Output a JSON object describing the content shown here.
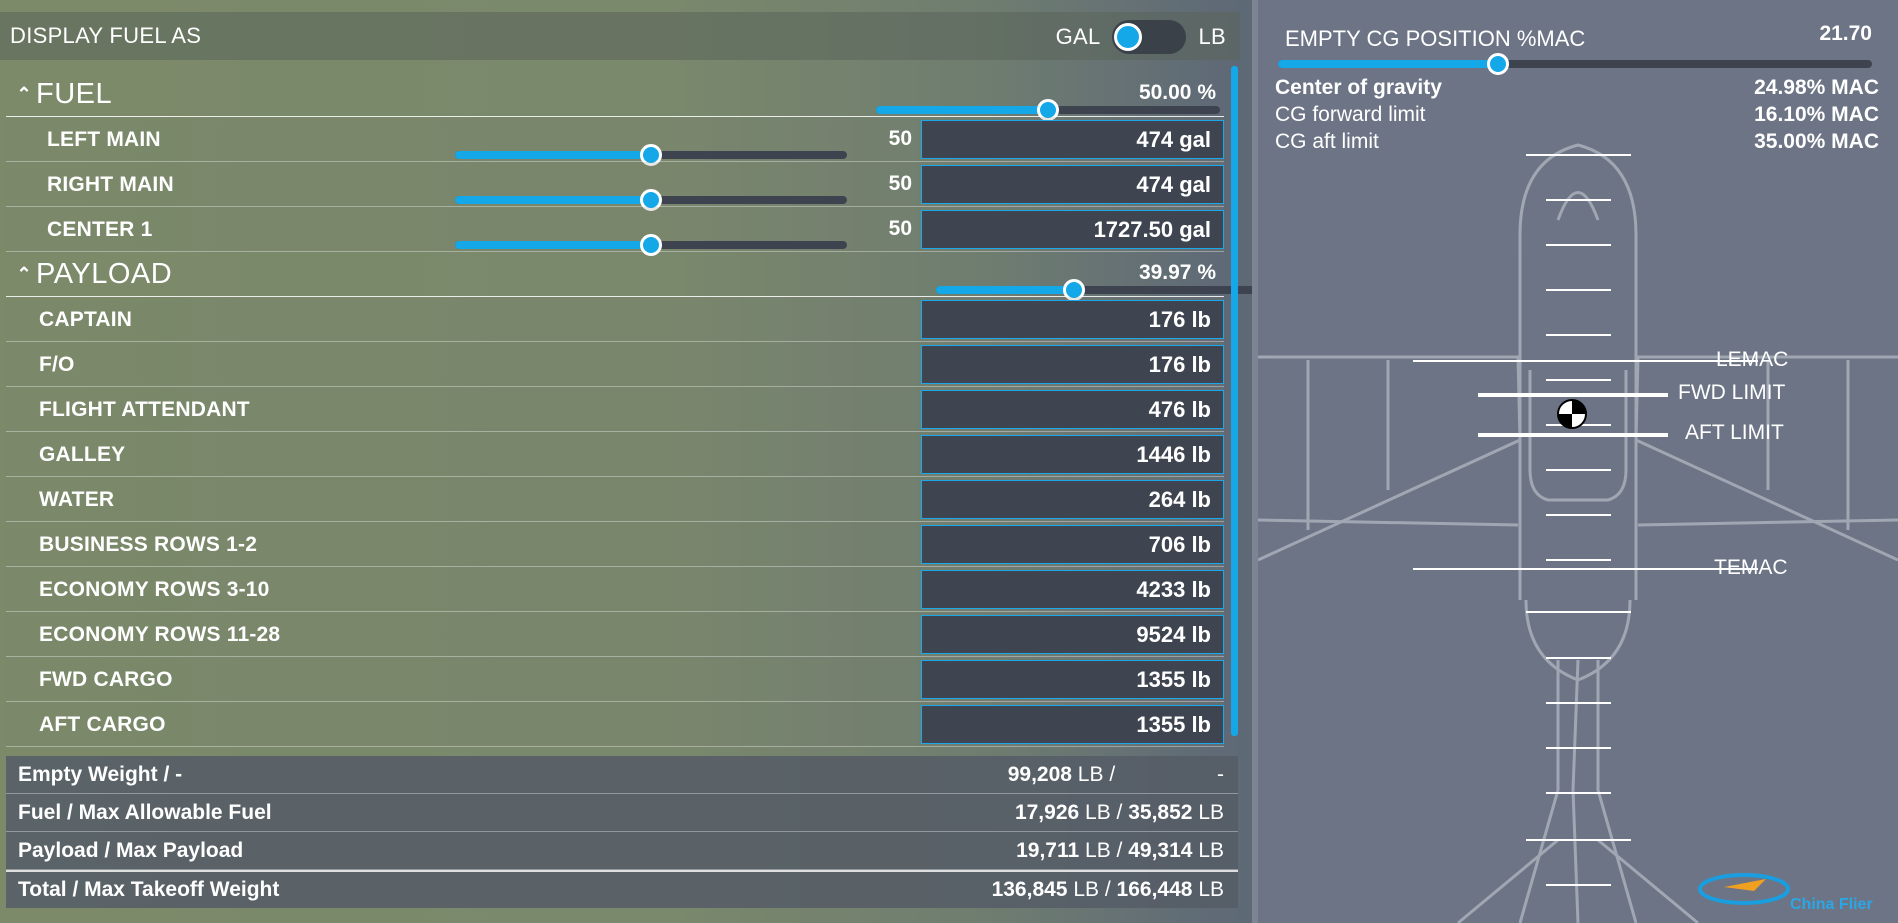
{
  "header": {
    "title": "DISPLAY FUEL AS",
    "unit_left": "GAL",
    "unit_right": "LB"
  },
  "fuel": {
    "label": "FUEL",
    "percent_text": "50.00 %",
    "percent": 50.0,
    "tanks": [
      {
        "label": "LEFT MAIN",
        "slider": 50,
        "slider_text": "50",
        "value": "474 gal"
      },
      {
        "label": "RIGHT MAIN",
        "slider": 50,
        "slider_text": "50",
        "value": "474 gal"
      },
      {
        "label": "CENTER 1",
        "slider": 50,
        "slider_text": "50",
        "value": "1727.50 gal"
      }
    ]
  },
  "payload": {
    "label": "PAYLOAD",
    "percent_text": "39.97 %",
    "percent": 39.97,
    "stations": [
      {
        "label": "CAPTAIN",
        "value": "176 lb"
      },
      {
        "label": "F/O",
        "value": "176 lb"
      },
      {
        "label": "FLIGHT ATTENDANT",
        "value": "476 lb"
      },
      {
        "label": "GALLEY",
        "value": "1446 lb"
      },
      {
        "label": "WATER",
        "value": "264 lb"
      },
      {
        "label": "BUSINESS ROWS 1-2",
        "value": "706 lb"
      },
      {
        "label": "ECONOMY ROWS 3-10",
        "value": "4233 lb"
      },
      {
        "label": "ECONOMY ROWS 11-28",
        "value": "9524 lb"
      },
      {
        "label": "FWD CARGO",
        "value": "1355 lb"
      },
      {
        "label": "AFT CARGO",
        "value": "1355 lb"
      }
    ]
  },
  "summary": {
    "empty": {
      "label": "Empty Weight / -",
      "v1": "99,208",
      "u1": "LB /",
      "v2": "",
      "u2": "-"
    },
    "fuel": {
      "label": "Fuel / Max Allowable Fuel",
      "v1": "17,926",
      "u1": "LB /",
      "v2": "35,852",
      "u2": "LB"
    },
    "payload": {
      "label": "Payload / Max Payload",
      "v1": "19,711",
      "u1": "LB /",
      "v2": "49,314",
      "u2": "LB"
    },
    "total": {
      "label": "Total / Max Takeoff Weight",
      "v1": "136,845",
      "u1": "LB /",
      "v2": "166,448",
      "u2": "LB"
    }
  },
  "cg": {
    "title": "EMPTY CG POSITION %MAC",
    "value_text": "21.70",
    "slider_fraction": 0.37,
    "rows": [
      {
        "label": "Center of gravity",
        "value": "24.98% MAC"
      },
      {
        "label": "CG forward limit",
        "value": "16.10% MAC"
      },
      {
        "label": "CG aft limit",
        "value": "35.00% MAC"
      }
    ],
    "labels": {
      "lemac": "LEMAC",
      "fwd_limit": "FWD LIMIT",
      "aft_limit": "AFT LIMIT",
      "temac": "TEMAC"
    }
  },
  "watermark": {
    "text": "China Flier"
  },
  "colors": {
    "accent": "#14a8e8",
    "box": "#3c424e"
  }
}
